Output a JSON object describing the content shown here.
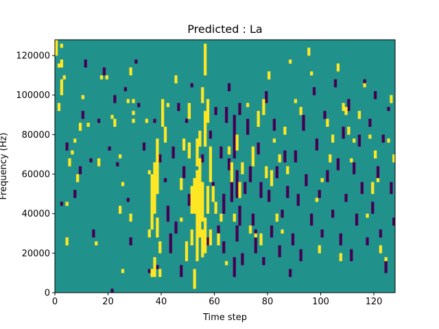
{
  "chart_data": {
    "type": "heatmap",
    "title": "Predicted : La",
    "xlabel": "Time step",
    "ylabel": "Frequency (Hz)",
    "xlim": [
      0,
      128
    ],
    "ylim": [
      0,
      128000
    ],
    "x_ticks": [
      0,
      20,
      40,
      60,
      80,
      100,
      120
    ],
    "x_tick_labels": [
      "0",
      "20",
      "40",
      "60",
      "80",
      "100",
      "120"
    ],
    "y_ticks": [
      0,
      20000,
      40000,
      60000,
      80000,
      100000,
      120000
    ],
    "y_tick_labels": [
      "0",
      "20000",
      "40000",
      "60000",
      "80000",
      "100000",
      "120000"
    ],
    "grid": false,
    "colormap": "viridis",
    "colors": {
      "low": "#440154",
      "mid": "#21918c",
      "high": "#fde725"
    },
    "rows": 64,
    "cols": 128,
    "background_value": "mid",
    "cells_high": [
      [
        0,
        60,
        63
      ],
      [
        1,
        46,
        47
      ],
      [
        1,
        57,
        57
      ],
      [
        2,
        50,
        53
      ],
      [
        2,
        57,
        58
      ],
      [
        2,
        62,
        62
      ],
      [
        3,
        54,
        54
      ],
      [
        4,
        22,
        22
      ],
      [
        4,
        12,
        13
      ],
      [
        5,
        32,
        33
      ],
      [
        6,
        35,
        35
      ],
      [
        7,
        38,
        38
      ],
      [
        8,
        28,
        29
      ],
      [
        9,
        41,
        42
      ],
      [
        10,
        49,
        49
      ],
      [
        12,
        42,
        42
      ],
      [
        15,
        12,
        12
      ],
      [
        16,
        32,
        33
      ],
      [
        17,
        54,
        54
      ],
      [
        19,
        54,
        54
      ],
      [
        21,
        44,
        44
      ],
      [
        22,
        42,
        43
      ],
      [
        24,
        34,
        34
      ],
      [
        24,
        20,
        21
      ],
      [
        25,
        5,
        5
      ],
      [
        25,
        27,
        27
      ],
      [
        27,
        48,
        48
      ],
      [
        28,
        55,
        56
      ],
      [
        28,
        18,
        19
      ],
      [
        29,
        45,
        45
      ],
      [
        29,
        43,
        43
      ],
      [
        29,
        48,
        48
      ],
      [
        34,
        43,
        43
      ],
      [
        35,
        30,
        30
      ],
      [
        35,
        14,
        15
      ],
      [
        36,
        4,
        5
      ],
      [
        36,
        16,
        29
      ],
      [
        37,
        20,
        32
      ],
      [
        37,
        4,
        8
      ],
      [
        38,
        25,
        38
      ],
      [
        38,
        14,
        18
      ],
      [
        39,
        4,
        5
      ],
      [
        39,
        10,
        12
      ],
      [
        40,
        42,
        48
      ],
      [
        41,
        38,
        41
      ],
      [
        42,
        47,
        47
      ],
      [
        45,
        53,
        54
      ],
      [
        47,
        18,
        18
      ],
      [
        47,
        26,
        28
      ],
      [
        48,
        36,
        38
      ],
      [
        49,
        8,
        12
      ],
      [
        50,
        34,
        37
      ],
      [
        50,
        44,
        47
      ],
      [
        51,
        12,
        15
      ],
      [
        51,
        20,
        26
      ],
      [
        52,
        1,
        3
      ],
      [
        52,
        20,
        28
      ],
      [
        52,
        4,
        5
      ],
      [
        53,
        8,
        30
      ],
      [
        53,
        32,
        34
      ],
      [
        53,
        35,
        38
      ],
      [
        54,
        14,
        33
      ],
      [
        54,
        37,
        40
      ],
      [
        55,
        9,
        15
      ],
      [
        55,
        18,
        27
      ],
      [
        55,
        48,
        51
      ],
      [
        56,
        10,
        18
      ],
      [
        56,
        37,
        45
      ],
      [
        56,
        55,
        62
      ],
      [
        57,
        20,
        26
      ],
      [
        57,
        43,
        48
      ],
      [
        58,
        12,
        15
      ],
      [
        58,
        28,
        36
      ],
      [
        59,
        23,
        26
      ],
      [
        60,
        20,
        22
      ],
      [
        61,
        12,
        14
      ],
      [
        62,
        18,
        19
      ],
      [
        64,
        7,
        7
      ],
      [
        65,
        35,
        36
      ],
      [
        66,
        28,
        32
      ],
      [
        67,
        18,
        19
      ],
      [
        68,
        36,
        39
      ],
      [
        69,
        24,
        27
      ],
      [
        70,
        30,
        32
      ],
      [
        72,
        47,
        47
      ],
      [
        73,
        15,
        16
      ],
      [
        74,
        32,
        36
      ],
      [
        75,
        14,
        14
      ],
      [
        76,
        42,
        45
      ],
      [
        77,
        12,
        14
      ],
      [
        78,
        45,
        48
      ],
      [
        79,
        29,
        31
      ],
      [
        80,
        54,
        55
      ],
      [
        81,
        27,
        30
      ],
      [
        82,
        38,
        38
      ],
      [
        83,
        18,
        19
      ],
      [
        84,
        33,
        34
      ],
      [
        85,
        15,
        15
      ],
      [
        86,
        40,
        41
      ],
      [
        87,
        30,
        31
      ],
      [
        88,
        58,
        58
      ],
      [
        90,
        48,
        48
      ],
      [
        92,
        45,
        46
      ],
      [
        95,
        60,
        61
      ],
      [
        96,
        55,
        55
      ],
      [
        98,
        23,
        23
      ],
      [
        99,
        10,
        11
      ],
      [
        100,
        28,
        28
      ],
      [
        102,
        42,
        43
      ],
      [
        103,
        33,
        34
      ],
      [
        104,
        38,
        39
      ],
      [
        106,
        56,
        57
      ],
      [
        107,
        8,
        9
      ],
      [
        108,
        46,
        47
      ],
      [
        109,
        45,
        46
      ],
      [
        110,
        40,
        41
      ],
      [
        111,
        33,
        33
      ],
      [
        112,
        38,
        38
      ],
      [
        114,
        44,
        45
      ],
      [
        116,
        52,
        52
      ],
      [
        117,
        19,
        19
      ],
      [
        118,
        39,
        39
      ],
      [
        119,
        25,
        27
      ],
      [
        120,
        34,
        35
      ],
      [
        121,
        28,
        28
      ],
      [
        122,
        10,
        11
      ],
      [
        124,
        8,
        8
      ],
      [
        125,
        38,
        38
      ],
      [
        126,
        48,
        49
      ],
      [
        127,
        33,
        34
      ]
    ],
    "cells_low": [
      [
        2,
        22,
        22
      ],
      [
        4,
        36,
        37
      ],
      [
        7,
        24,
        25
      ],
      [
        9,
        30,
        31
      ],
      [
        10,
        44,
        45
      ],
      [
        11,
        57,
        58
      ],
      [
        13,
        33,
        33
      ],
      [
        14,
        14,
        15
      ],
      [
        16,
        43,
        43
      ],
      [
        18,
        55,
        56
      ],
      [
        20,
        36,
        36
      ],
      [
        21,
        0,
        0
      ],
      [
        22,
        48,
        49
      ],
      [
        23,
        32,
        32
      ],
      [
        26,
        51,
        51
      ],
      [
        27,
        23,
        23
      ],
      [
        28,
        12,
        13
      ],
      [
        30,
        58,
        58
      ],
      [
        31,
        47,
        47
      ],
      [
        33,
        36,
        37
      ],
      [
        35,
        5,
        5
      ],
      [
        37,
        43,
        43
      ],
      [
        38,
        6,
        6
      ],
      [
        39,
        33,
        34
      ],
      [
        41,
        28,
        28
      ],
      [
        42,
        18,
        21
      ],
      [
        43,
        10,
        14
      ],
      [
        44,
        34,
        36
      ],
      [
        45,
        15,
        17
      ],
      [
        46,
        46,
        47
      ],
      [
        47,
        4,
        6
      ],
      [
        48,
        29,
        31
      ],
      [
        49,
        43,
        43
      ],
      [
        50,
        22,
        24
      ],
      [
        51,
        52,
        52
      ],
      [
        53,
        19,
        19
      ],
      [
        55,
        33,
        34
      ],
      [
        57,
        12,
        13
      ],
      [
        58,
        39,
        40
      ],
      [
        59,
        26,
        27
      ],
      [
        60,
        45,
        46
      ],
      [
        61,
        15,
        16
      ],
      [
        62,
        34,
        36
      ],
      [
        63,
        10,
        12
      ],
      [
        63,
        20,
        24
      ],
      [
        64,
        43,
        46
      ],
      [
        65,
        31,
        33
      ],
      [
        65,
        51,
        52
      ],
      [
        66,
        23,
        28
      ],
      [
        67,
        4,
        8
      ],
      [
        67,
        34,
        44
      ],
      [
        68,
        13,
        16
      ],
      [
        68,
        24,
        30
      ],
      [
        69,
        17,
        21
      ],
      [
        69,
        45,
        47
      ],
      [
        70,
        7,
        9
      ],
      [
        71,
        25,
        27
      ],
      [
        72,
        40,
        43
      ],
      [
        73,
        28,
        31
      ],
      [
        74,
        17,
        19
      ],
      [
        75,
        10,
        15
      ],
      [
        76,
        35,
        37
      ],
      [
        77,
        24,
        27
      ],
      [
        78,
        7,
        8
      ],
      [
        79,
        48,
        50
      ],
      [
        80,
        23,
        25
      ],
      [
        81,
        14,
        16
      ],
      [
        82,
        41,
        43
      ],
      [
        83,
        29,
        31
      ],
      [
        84,
        9,
        11
      ],
      [
        85,
        19,
        20
      ],
      [
        86,
        33,
        35
      ],
      [
        87,
        24,
        26
      ],
      [
        88,
        4,
        5
      ],
      [
        89,
        12,
        14
      ],
      [
        90,
        33,
        35
      ],
      [
        91,
        22,
        24
      ],
      [
        92,
        8,
        10
      ],
      [
        93,
        41,
        44
      ],
      [
        94,
        27,
        29
      ],
      [
        96,
        17,
        19
      ],
      [
        97,
        50,
        51
      ],
      [
        98,
        36,
        38
      ],
      [
        99,
        24,
        25
      ],
      [
        100,
        14,
        15
      ],
      [
        101,
        44,
        45
      ],
      [
        102,
        28,
        30
      ],
      [
        104,
        19,
        20
      ],
      [
        105,
        52,
        53
      ],
      [
        106,
        31,
        33
      ],
      [
        107,
        12,
        14
      ],
      [
        108,
        39,
        41
      ],
      [
        109,
        23,
        24
      ],
      [
        110,
        46,
        48
      ],
      [
        111,
        8,
        10
      ],
      [
        112,
        30,
        32
      ],
      [
        113,
        17,
        19
      ],
      [
        114,
        37,
        39
      ],
      [
        115,
        25,
        27
      ],
      [
        116,
        52,
        53
      ],
      [
        117,
        12,
        13
      ],
      [
        118,
        42,
        43
      ],
      [
        119,
        20,
        22
      ],
      [
        120,
        49,
        50
      ],
      [
        121,
        29,
        31
      ],
      [
        122,
        14,
        15
      ],
      [
        123,
        38,
        39
      ],
      [
        124,
        5,
        7
      ],
      [
        125,
        46,
        46
      ],
      [
        126,
        25,
        27
      ],
      [
        127,
        17,
        18
      ]
    ]
  }
}
